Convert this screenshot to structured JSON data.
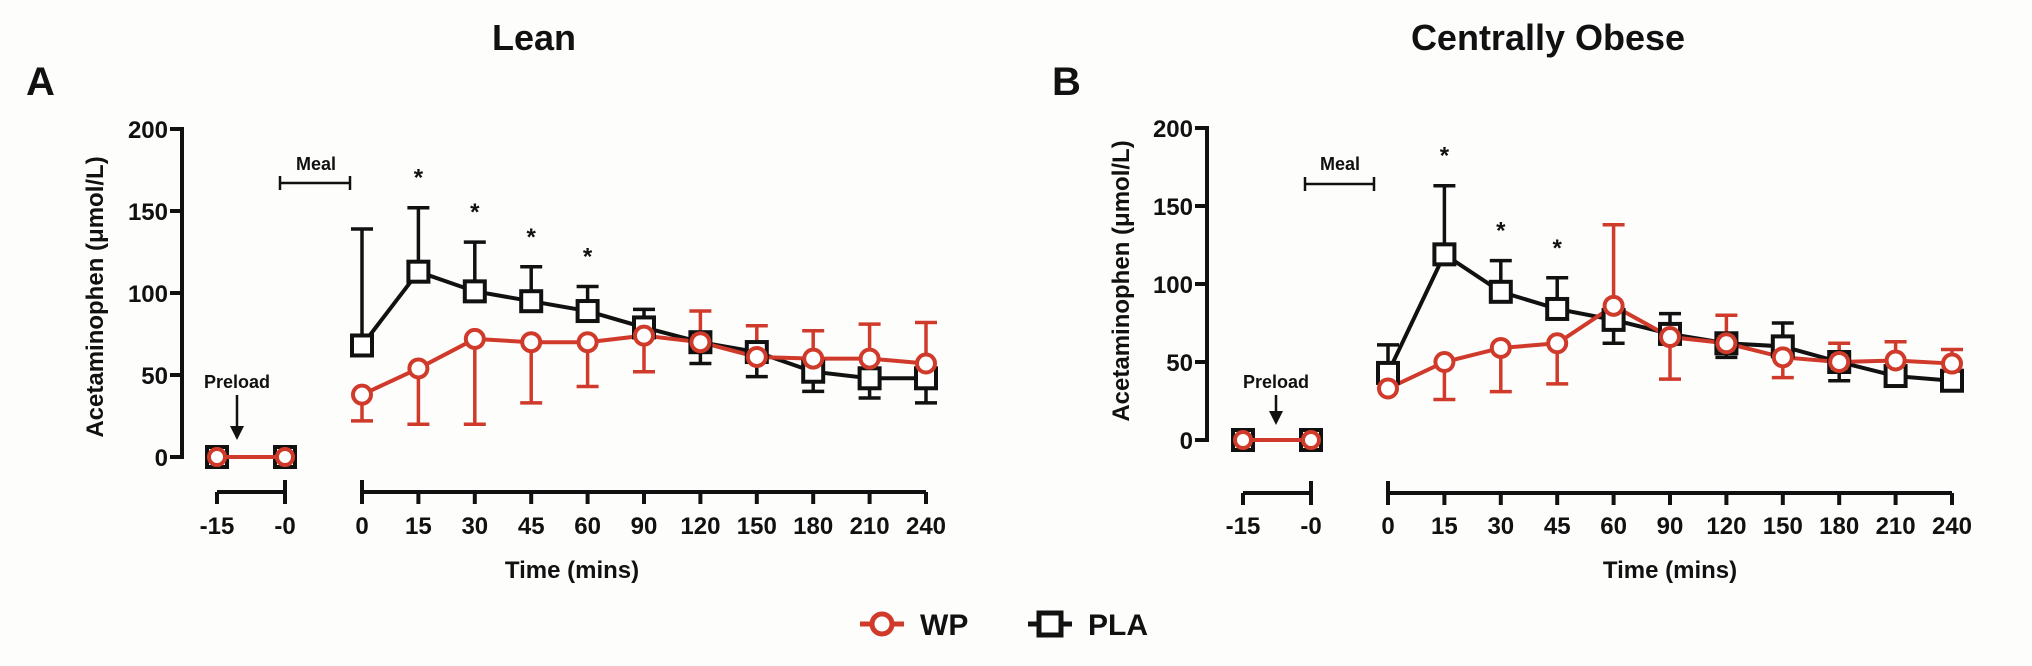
{
  "legend": [
    {
      "key": "WP",
      "label": "WP",
      "marker": "circle",
      "color": "#d03a2a"
    },
    {
      "key": "PLA",
      "label": "PLA",
      "marker": "square",
      "color": "#111111"
    }
  ],
  "chart_data": [
    {
      "type": "line",
      "panel": "A",
      "title": "Lean",
      "xlabel": "Time (mins)",
      "ylabel": "Acetaminophen (μmol/L)",
      "ylim": [
        0,
        200
      ],
      "yticks": [
        "0",
        "50",
        "100",
        "150",
        "200"
      ],
      "grid": false,
      "legend_position": "bottom-center",
      "preload": {
        "categories": [
          "-15",
          "-0"
        ],
        "annotation": "Preload",
        "series": [
          {
            "name": "WP",
            "values": [
              0,
              0
            ]
          },
          {
            "name": "PLA",
            "values": [
              0,
              0
            ]
          }
        ]
      },
      "meal_annotation": "Meal",
      "categories": [
        "0",
        "15",
        "30",
        "45",
        "60",
        "90",
        "120",
        "150",
        "180",
        "210",
        "240"
      ],
      "series": [
        {
          "name": "WP",
          "values": [
            38,
            54,
            72,
            70,
            70,
            74,
            70,
            61,
            60,
            60,
            57
          ],
          "error": [
            16,
            34,
            52,
            37,
            27,
            22,
            19,
            19,
            17,
            21,
            25
          ],
          "error_direction": [
            "down",
            "down",
            "down",
            "down",
            "down",
            "down",
            "up",
            "up",
            "up",
            "up",
            "up"
          ]
        },
        {
          "name": "PLA",
          "values": [
            68,
            113,
            101,
            95,
            89,
            79,
            70,
            64,
            52,
            48,
            48
          ],
          "error": [
            71,
            39,
            30,
            21,
            15,
            11,
            13,
            15,
            12,
            12,
            15
          ],
          "error_direction": [
            "up",
            "up",
            "up",
            "up",
            "up",
            "up",
            "down",
            "down",
            "down",
            "down",
            "down"
          ]
        }
      ],
      "significance": {
        "marker": "*",
        "categories": [
          "15",
          "30",
          "45",
          "60"
        ]
      }
    },
    {
      "type": "line",
      "panel": "B",
      "title": "Centrally Obese",
      "xlabel": "Time (mins)",
      "ylabel": "Acetaminophen (μmol/L)",
      "ylim": [
        0,
        200
      ],
      "yticks": [
        "0",
        "50",
        "100",
        "150",
        "200"
      ],
      "grid": false,
      "legend_position": "bottom-center",
      "preload": {
        "categories": [
          "-15",
          "-0"
        ],
        "annotation": "Preload",
        "series": [
          {
            "name": "WP",
            "values": [
              0,
              0
            ]
          },
          {
            "name": "PLA",
            "values": [
              0,
              0
            ]
          }
        ]
      },
      "meal_annotation": "Meal",
      "categories": [
        "0",
        "15",
        "30",
        "45",
        "60",
        "90",
        "120",
        "150",
        "180",
        "210",
        "240"
      ],
      "series": [
        {
          "name": "WP",
          "values": [
            33,
            50,
            59,
            62,
            86,
            66,
            62,
            53,
            50,
            51,
            49
          ],
          "error": [
            0,
            24,
            28,
            26,
            52,
            27,
            18,
            13,
            12,
            12,
            9
          ],
          "error_direction": [
            "down",
            "down",
            "down",
            "down",
            "up",
            "down",
            "up",
            "down",
            "up",
            "up",
            "up"
          ]
        },
        {
          "name": "PLA",
          "values": [
            43,
            119,
            95,
            84,
            77,
            68,
            62,
            60,
            50,
            41,
            38
          ],
          "error": [
            18,
            44,
            20,
            20,
            15,
            13,
            9,
            15,
            12,
            0,
            0
          ],
          "error_direction": [
            "up",
            "up",
            "up",
            "up",
            "down",
            "up",
            "down",
            "up",
            "down",
            "down",
            "down"
          ]
        }
      ],
      "significance": {
        "marker": "*",
        "categories": [
          "15",
          "30",
          "45"
        ]
      }
    }
  ]
}
